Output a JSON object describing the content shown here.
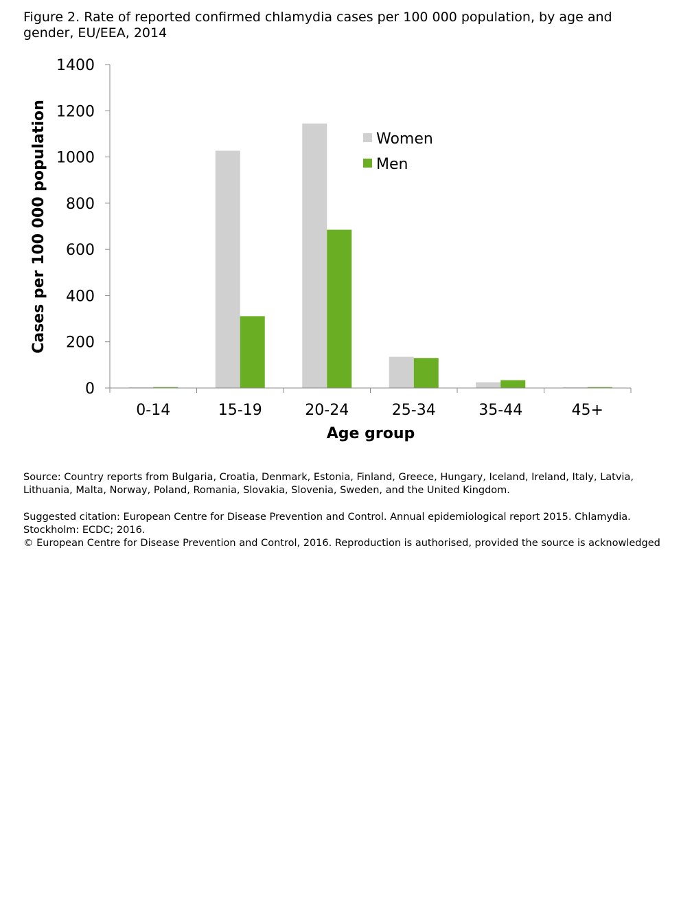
{
  "figure": {
    "title_line1": "Figure 2. Rate of reported confirmed chlamydia cases per 100 000 population, by age and",
    "title_line2": "gender, EU/EEA, 2014"
  },
  "chart_data": {
    "type": "bar",
    "categories": [
      "0-14",
      "15-19",
      "20-24",
      "25-34",
      "35-44",
      "45+"
    ],
    "series": [
      {
        "name": "Women",
        "color": "#d0d0d0",
        "values": [
          3,
          1027,
          1145,
          135,
          25,
          3
        ]
      },
      {
        "name": "Men",
        "color": "#6aaf23",
        "values": [
          4,
          311,
          685,
          130,
          34,
          4
        ]
      }
    ],
    "xlabel": "Age group",
    "ylabel": "Cases per 100 000 population",
    "ylim": [
      0,
      1400
    ],
    "yticks": [
      "0",
      "200",
      "400",
      "600",
      "800",
      "1000",
      "1200",
      "1400"
    ],
    "grid": false,
    "legend_position": "top-center"
  },
  "notes": {
    "source_line1": "Source: Country reports from Bulgaria, Croatia, Denmark, Estonia, Finland, Greece, Hungary, Iceland, Ireland, Italy, Latvia,",
    "source_line2": "Lithuania, Malta, Norway, Poland, Romania, Slovakia, Slovenia, Sweden, and the United Kingdom.",
    "citation_line1": "Suggested citation: European Centre for Disease Prevention and Control. Annual epidemiological report 2015. Chlamydia.",
    "citation_line2": "Stockholm: ECDC; 2016.",
    "copyright": "© European Centre for Disease Prevention and Control, 2016. Reproduction is authorised, provided the source is acknowledged"
  }
}
